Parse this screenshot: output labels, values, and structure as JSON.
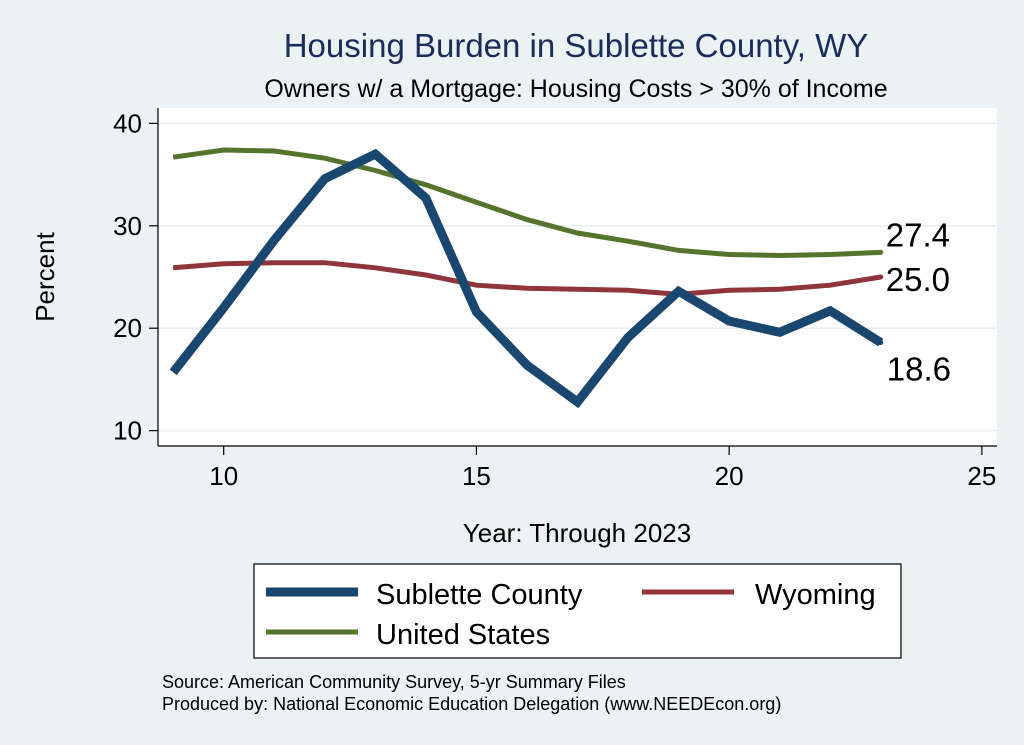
{
  "chart_data": {
    "type": "line",
    "title": "Housing Burden in Sublette County, WY",
    "subtitle": "Owners w/ a Mortgage: Housing Costs > 30% of Income",
    "xlabel": "Year: Through 2023",
    "ylabel": "Percent",
    "xlim": [
      8.7,
      25.3
    ],
    "ylim": [
      8.5,
      41.5
    ],
    "xticks": [
      10,
      15,
      20,
      25
    ],
    "yticks": [
      10,
      20,
      30,
      40
    ],
    "grid": true,
    "legend_position": "bottom",
    "series": [
      {
        "name": "Sublette County",
        "color": "#1a476f",
        "width": "thick",
        "x": [
          9,
          10,
          11,
          12,
          13,
          14,
          15,
          16,
          17,
          18,
          19,
          20,
          21,
          22,
          23
        ],
        "values": [
          15.7,
          22.0,
          28.6,
          34.6,
          37.0,
          32.7,
          21.6,
          16.4,
          12.8,
          19.1,
          23.6,
          20.7,
          19.6,
          21.7,
          18.6
        ],
        "end_label": "18.6"
      },
      {
        "name": "Wyoming",
        "color": "#90353b",
        "width": "medium",
        "x": [
          9,
          10,
          11,
          12,
          13,
          14,
          15,
          16,
          17,
          18,
          19,
          20,
          21,
          22,
          23
        ],
        "values": [
          25.9,
          26.3,
          26.4,
          26.4,
          25.9,
          25.2,
          24.2,
          23.9,
          23.8,
          23.7,
          23.3,
          23.7,
          23.8,
          24.2,
          25.0
        ],
        "end_label": "25.0"
      },
      {
        "name": "United States",
        "color": "#55752f",
        "width": "medium",
        "x": [
          9,
          10,
          11,
          12,
          13,
          14,
          15,
          16,
          17,
          18,
          19,
          20,
          21,
          22,
          23
        ],
        "values": [
          36.7,
          37.4,
          37.3,
          36.6,
          35.4,
          34.0,
          32.3,
          30.6,
          29.3,
          28.5,
          27.6,
          27.2,
          27.1,
          27.2,
          27.4
        ],
        "end_label": "27.4"
      }
    ],
    "source_lines": [
      "Source: American Community Survey, 5-yr Summary Files",
      "Produced by: National Economic Education Delegation (www.NEEDEcon.org)"
    ]
  }
}
